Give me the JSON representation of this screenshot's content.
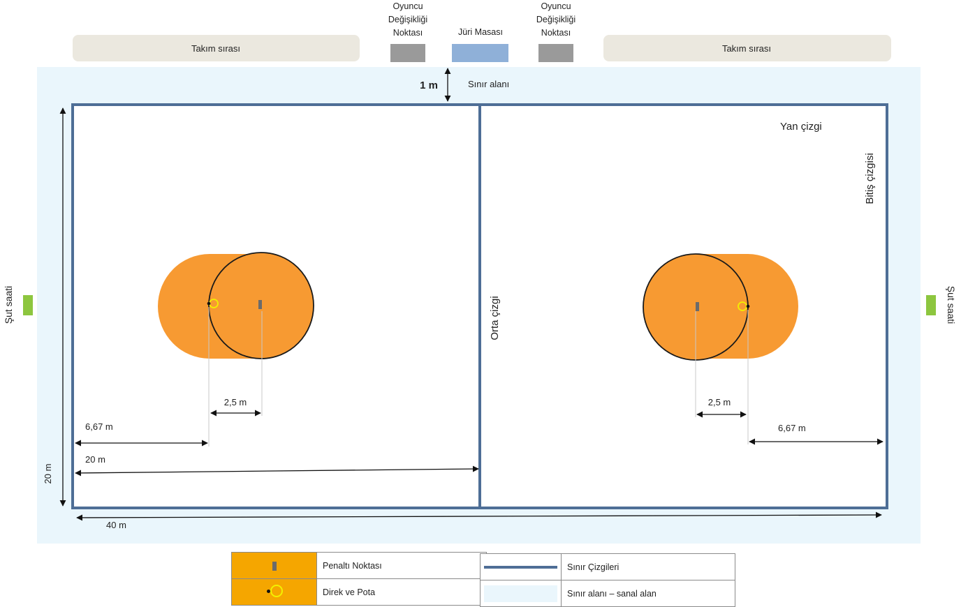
{
  "top": {
    "team_bench_left": "Takım sırası",
    "team_bench_right": "Takım sırası",
    "sub_point_left": [
      "Oyuncu",
      "Değişikliği",
      "Noktası"
    ],
    "sub_point_right": [
      "Oyuncu",
      "Değişikliği",
      "Noktası"
    ],
    "jury_table": "Jüri Masası"
  },
  "court": {
    "boundary_width": "1 m",
    "boundary_area": "Sınır alanı",
    "side_line": "Yan çizgi",
    "end_line": "Bitiş çizgisi",
    "center_line": "Orta çizgi",
    "shot_clock_left": "Şut saati",
    "shot_clock_right": "Şut saati"
  },
  "dimensions": {
    "penalty_left": "2,5 m",
    "penalty_right": "2,5 m",
    "end_to_post_left": "6,67 m",
    "end_to_post_right": "6,67 m",
    "half_length": "20 m",
    "width": "20 m",
    "length": "40 m"
  },
  "legend": {
    "penalty_spot": "Penaltı Noktası",
    "post_and_hoop": "Direk ve Pota",
    "boundary_lines": "Sınır Çizgileri",
    "boundary_area": "Sınır alanı – sanal alan"
  },
  "colors": {
    "boundary_zone": "#eaf6fc",
    "court_line": "#4e6e96",
    "goal_area": "#f79a32",
    "bench": "#ebe8df",
    "sub_point": "#9a9a9a",
    "jury_table": "#8fb0d8",
    "shot_clock": "#8dc63f",
    "hoop": "#f3f000"
  }
}
